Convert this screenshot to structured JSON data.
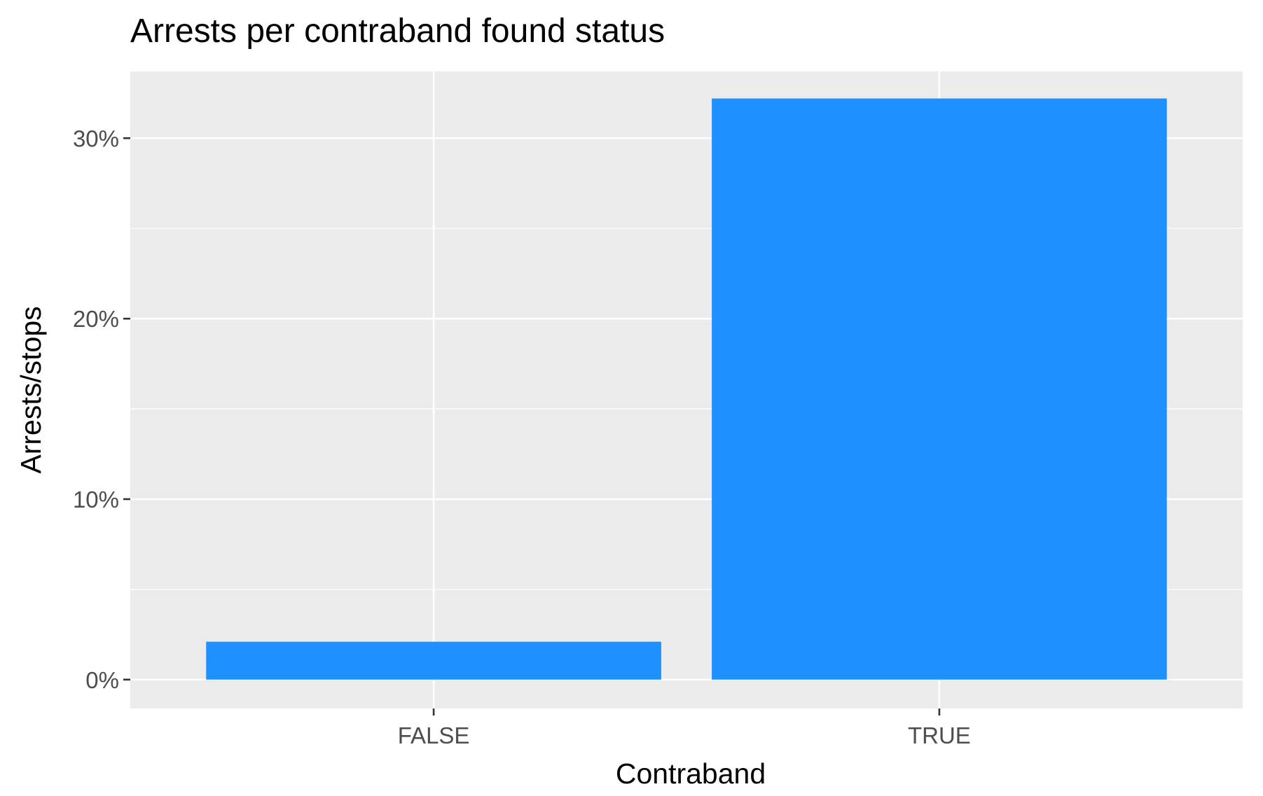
{
  "chart_data": {
    "type": "bar",
    "title": "Arrests per contraband found status",
    "xlabel": "Contraband",
    "ylabel": "Arrests/stops",
    "categories": [
      "FALSE",
      "TRUE"
    ],
    "values": [
      0.021,
      0.322
    ],
    "y_unit": "fraction",
    "ylim": [
      -0.016,
      0.337
    ],
    "y_ticks": [
      {
        "value": 0,
        "label": "0%"
      },
      {
        "value": 0.1,
        "label": "10%"
      },
      {
        "value": 0.2,
        "label": "20%"
      },
      {
        "value": 0.3,
        "label": "30%"
      }
    ],
    "y_minor_ticks": [
      0.05,
      0.15,
      0.25
    ],
    "grid": true,
    "colors": {
      "bar": "#1e90ff",
      "panel": "#ebebeb",
      "grid": "#ffffff",
      "tick_label": "#4d4d4d",
      "tick_mark": "#333333"
    }
  }
}
